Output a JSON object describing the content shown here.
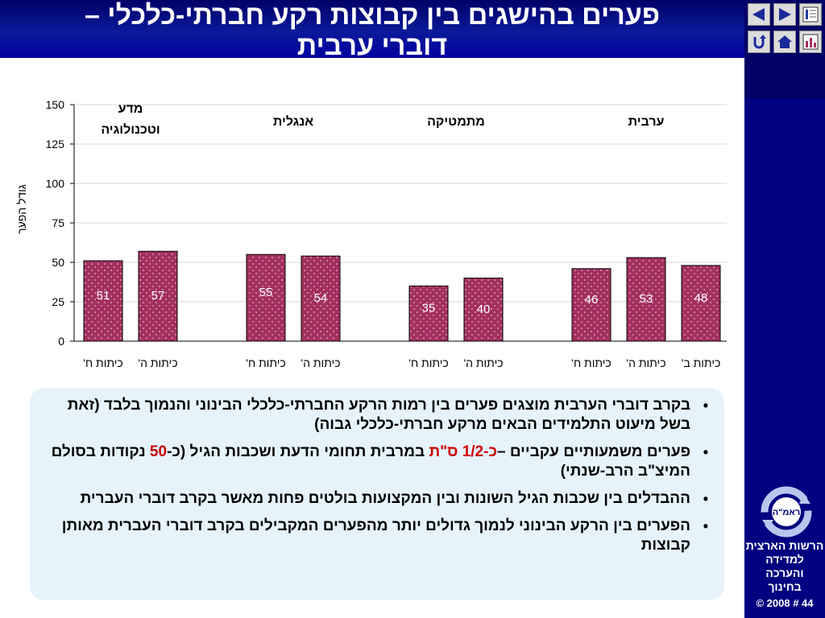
{
  "title": {
    "line1": "פערים בהישגים בין קבוצות רקע חברתי-כלכלי –",
    "line2": "דוברי ערבית"
  },
  "nav": {
    "icons": [
      "slide-index-icon",
      "next-arrow-icon",
      "prev-arrow-icon",
      "chart-icon",
      "home-icon",
      "return-icon"
    ]
  },
  "colors": {
    "bar_fill": "#a3305f",
    "bar_dots": "#e3b4c8",
    "title_bg": "#000080",
    "panel_bg": "#000080",
    "text_box_bg": "#e6f3fb",
    "highlight": "#cc0000"
  },
  "chart_data": {
    "type": "bar",
    "ylabel": "גודל הפער",
    "ylim": [
      0,
      150
    ],
    "yticks": [
      "0",
      "25",
      "50",
      "75",
      "100",
      "125",
      "150"
    ],
    "groups": [
      {
        "label": "מדע וטכנולוגיה",
        "bars": [
          {
            "category": "כיתות ח'",
            "value": 51
          },
          {
            "category": "כיתות ה'",
            "value": 57
          }
        ]
      },
      {
        "label": "אנגלית",
        "bars": [
          {
            "category": "כיתות ח'",
            "value": 55
          },
          {
            "category": "כיתות ה'",
            "value": 54
          }
        ]
      },
      {
        "label": "מתמטיקה",
        "bars": [
          {
            "category": "כיתות ח'",
            "value": 35
          },
          {
            "category": "כיתות ה'",
            "value": 40
          }
        ]
      },
      {
        "label": "ערבית",
        "bars": [
          {
            "category": "כיתות ח'",
            "value": 46
          },
          {
            "category": "כיתות ה'",
            "value": 53
          },
          {
            "category": "כיתות ב'",
            "value": 48
          }
        ]
      }
    ]
  },
  "bullets": [
    {
      "text": "בקרב דוברי הערבית מוצגים פערים בין רמות הרקע החברתי-כלכלי הבינוני והנמוך בלבד (זאת בשל מיעוט התלמידים הבאים מרקע חברתי-כלכלי גבוה)"
    },
    {
      "text_before": "פערים משמעותיים עקביים –",
      "text_red": "כ-1/2 ס\"ת",
      "text_middle": " במרבית תחומי הדעת ושכבות הגיל (כ-",
      "text_red2": "50",
      "text_after": " נקודות בסולם המיצ\"ב הרב-שנתי)"
    },
    {
      "text": "ההבדלים בין שכבות הגיל השונות ובין המקצועות בולטים פחות מאשר בקרב דוברי העברית"
    },
    {
      "text": "הפערים בין הרקע הבינוני לנמוך גדולים יותר מהפערים המקבילים בקרב דוברי העברית מאותן קבוצות"
    }
  ],
  "logo": {
    "abbr": "ראמ\"ה",
    "org_name_lines": [
      "הרשות הארצית",
      "למדידה",
      "והערכה",
      "בחינוך"
    ],
    "copyright": "© 2008 # 44"
  }
}
